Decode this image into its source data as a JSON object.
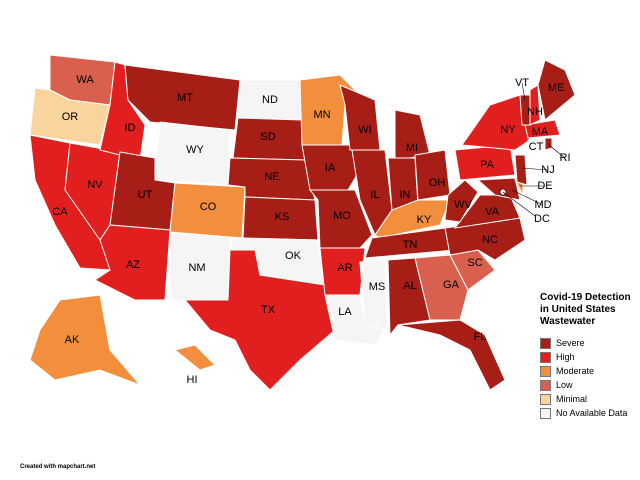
{
  "legend": {
    "title": "Covid-19 Detection in United States Wastewater",
    "items": [
      {
        "label": "Severe",
        "color": "#a61e16"
      },
      {
        "label": "High",
        "color": "#e21f1f"
      },
      {
        "label": "Moderate",
        "color": "#f28e3c"
      },
      {
        "label": "Low",
        "color": "#d9604e"
      },
      {
        "label": "Minimal",
        "color": "#f9d49c"
      },
      {
        "label": "No Available Data",
        "color": "#f5f5f5"
      }
    ]
  },
  "states": [
    {
      "label": "WA",
      "level": 3
    },
    {
      "label": "OR",
      "level": 4
    },
    {
      "label": "CA",
      "level": 1
    },
    {
      "label": "NV",
      "level": 1
    },
    {
      "label": "ID",
      "level": 1
    },
    {
      "label": "MT",
      "level": 0
    },
    {
      "label": "WY",
      "level": 5
    },
    {
      "label": "UT",
      "level": 0
    },
    {
      "label": "AZ",
      "level": 1
    },
    {
      "label": "NM",
      "level": 5
    },
    {
      "label": "CO",
      "level": 2
    },
    {
      "label": "ND",
      "level": 5
    },
    {
      "label": "SD",
      "level": 0
    },
    {
      "label": "NE",
      "level": 0
    },
    {
      "label": "KS",
      "level": 0
    },
    {
      "label": "OK",
      "level": 5
    },
    {
      "label": "TX",
      "level": 1
    },
    {
      "label": "MN",
      "level": 2
    },
    {
      "label": "IA",
      "level": 0
    },
    {
      "label": "MO",
      "level": 0
    },
    {
      "label": "AR",
      "level": 1
    },
    {
      "label": "LA",
      "level": 5
    },
    {
      "label": "WI",
      "level": 0
    },
    {
      "label": "IL",
      "level": 0
    },
    {
      "label": "MI",
      "level": 0
    },
    {
      "label": "IN",
      "level": 0
    },
    {
      "label": "OH",
      "level": 0
    },
    {
      "label": "KY",
      "level": 2
    },
    {
      "label": "TN",
      "level": 0
    },
    {
      "label": "MS",
      "level": 5
    },
    {
      "label": "AL",
      "level": 0
    },
    {
      "label": "GA",
      "level": 3
    },
    {
      "label": "FL",
      "level": 0
    },
    {
      "label": "SC",
      "level": 3
    },
    {
      "label": "NC",
      "level": 0
    },
    {
      "label": "VA",
      "level": 0
    },
    {
      "label": "WV",
      "level": 0
    },
    {
      "label": "PA",
      "level": 1
    },
    {
      "label": "NY",
      "level": 1
    },
    {
      "label": "MD",
      "level": 0
    },
    {
      "label": "DE",
      "level": 2
    },
    {
      "label": "NJ",
      "level": 0
    },
    {
      "label": "CT",
      "level": 5
    },
    {
      "label": "RI",
      "level": 0
    },
    {
      "label": "MA",
      "level": 1
    },
    {
      "label": "VT",
      "level": 0
    },
    {
      "label": "NH",
      "level": 1
    },
    {
      "label": "ME",
      "level": 0
    },
    {
      "label": "AK",
      "level": 2
    },
    {
      "label": "HI",
      "level": 2
    },
    {
      "label": "DC",
      "level": 5
    }
  ],
  "footer": "Created with mapchart.net"
}
